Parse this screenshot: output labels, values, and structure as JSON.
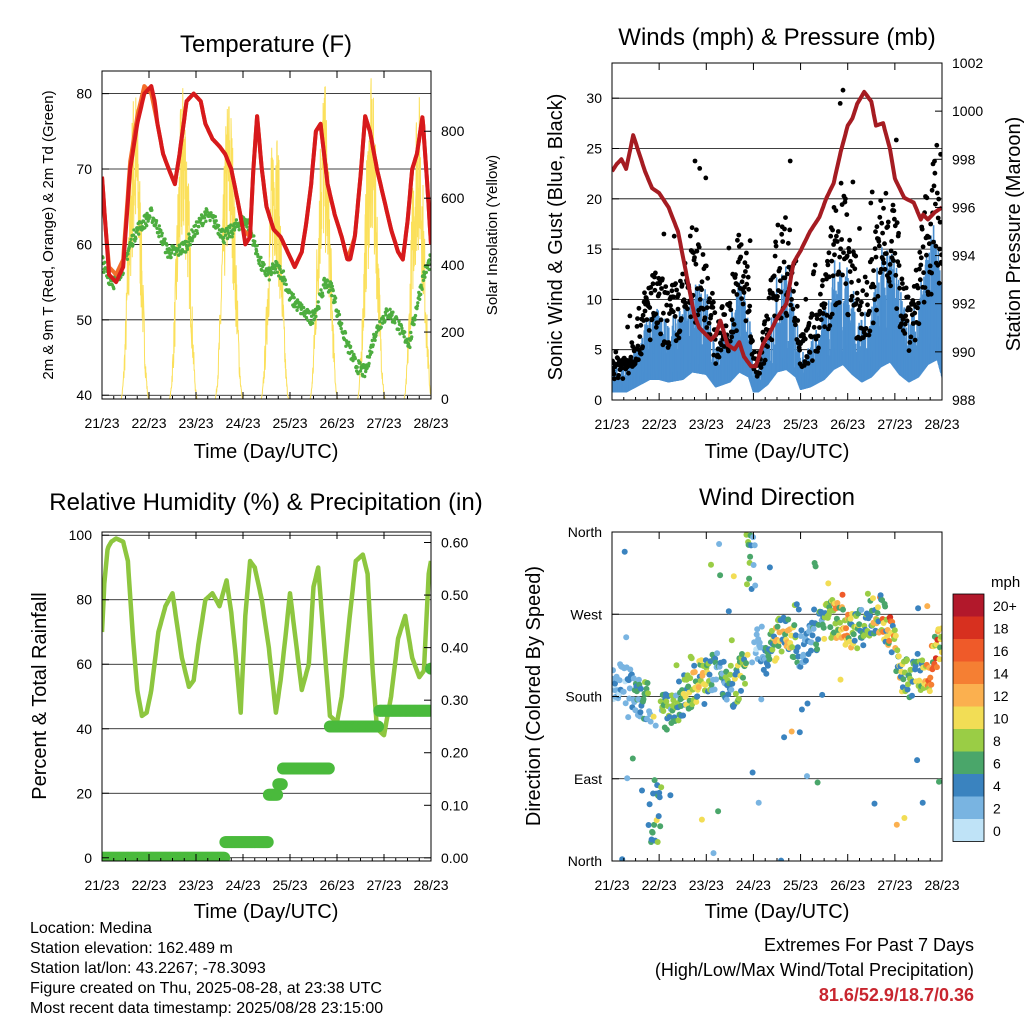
{
  "chart_data": [
    {
      "type": "line",
      "title": "Temperature (F)",
      "xlabel": "Time (Day/UTC)",
      "ylabel": "2m & 9m T (Red, Orange) & 2m Td (Green)",
      "y2label": "Solar Insolation (Yellow)",
      "x_ticks": [
        "21/23",
        "22/23",
        "23/23",
        "24/23",
        "25/23",
        "26/23",
        "27/23",
        "28/23"
      ],
      "xlim": [
        0,
        7
      ],
      "ylim": [
        39.5,
        83
      ],
      "y_ticks": [
        "40",
        "50",
        "60",
        "70",
        "80"
      ],
      "y2lim": [
        0,
        980
      ],
      "y2_ticks": [
        "0",
        "200",
        "400",
        "600",
        "800"
      ],
      "grid": true,
      "series": [
        {
          "role": "t2m",
          "color": "#d7191c",
          "x": [
            0,
            0.08,
            0.15,
            0.3,
            0.45,
            0.6,
            0.75,
            0.9,
            1.05,
            1.12,
            1.18,
            1.3,
            1.42,
            1.55,
            1.65,
            1.8,
            1.95,
            2.1,
            2.2,
            2.35,
            2.5,
            2.62,
            2.75,
            2.88,
            3.0,
            3.05,
            3.15,
            3.22,
            3.3,
            3.4,
            3.5,
            3.65,
            3.8,
            3.95,
            4.1,
            4.25,
            4.35,
            4.45,
            4.55,
            4.65,
            4.8,
            4.95,
            5.1,
            5.22,
            5.28,
            5.38,
            5.5,
            5.6,
            5.7,
            5.85,
            6.0,
            6.15,
            6.3,
            6.4,
            6.5,
            6.6,
            6.7,
            6.82,
            6.92,
            7.0
          ],
          "values": [
            69,
            62,
            56,
            55,
            57,
            70,
            76,
            80,
            81,
            79,
            76,
            72,
            70,
            68,
            72,
            79,
            80,
            79,
            76,
            74,
            73,
            72,
            70,
            66,
            62,
            60,
            61,
            70,
            77,
            70,
            65,
            62,
            61,
            59,
            57,
            59,
            63,
            68,
            75,
            76,
            68,
            64,
            61,
            58,
            58,
            61,
            69,
            77,
            75,
            70,
            66,
            62,
            59,
            58,
            63,
            70,
            72,
            77,
            68,
            60
          ]
        },
        {
          "role": "t9m",
          "color": "#f36c2a",
          "x": [
            0,
            0.08,
            0.15,
            0.3,
            0.45,
            0.6,
            0.75,
            0.9,
            1.05,
            1.18,
            1.3,
            1.42,
            1.55,
            1.65,
            1.8,
            1.95,
            2.1,
            2.2,
            2.35,
            2.5,
            2.62,
            2.75,
            2.88,
            3.0,
            3.15,
            3.22,
            3.3,
            3.4,
            3.5,
            3.65,
            3.8,
            3.95,
            4.1,
            4.25,
            4.35,
            4.45,
            4.55,
            4.65,
            4.8,
            4.95,
            5.1,
            5.22,
            5.38,
            5.5,
            5.6,
            5.7,
            5.85,
            6.0,
            6.15,
            6.3,
            6.4,
            6.5,
            6.6,
            6.7,
            6.82,
            6.92,
            7.0
          ],
          "values": [
            69,
            62,
            57,
            56,
            58,
            71,
            77,
            81,
            80,
            76,
            72,
            70,
            68,
            72,
            79,
            80,
            79,
            76,
            74,
            73,
            72,
            70,
            66,
            62,
            61,
            70,
            77,
            70,
            65,
            62,
            61,
            59,
            57,
            59,
            63,
            68,
            75,
            76,
            68,
            64,
            61,
            58,
            61,
            69,
            77,
            75,
            70,
            66,
            62,
            59,
            58,
            63,
            70,
            72,
            77,
            68,
            60
          ]
        },
        {
          "role": "td2m",
          "color": "#4dad3f",
          "x": [
            0,
            0.1,
            0.25,
            0.45,
            0.6,
            0.75,
            0.9,
            1.05,
            1.2,
            1.4,
            1.6,
            1.8,
            2.0,
            2.2,
            2.4,
            2.6,
            2.8,
            2.95,
            3.1,
            3.25,
            3.4,
            3.55,
            3.7,
            3.85,
            4.0,
            4.15,
            4.3,
            4.45,
            4.6,
            4.75,
            4.9,
            5.05,
            5.2,
            5.4,
            5.6,
            5.8,
            5.95,
            6.1,
            6.25,
            6.4,
            6.55,
            6.7,
            6.85,
            7.0
          ],
          "values": [
            58,
            56,
            55,
            57,
            60,
            62,
            63,
            64,
            62,
            59,
            59,
            60,
            62,
            64,
            63,
            61,
            62,
            63,
            63,
            60,
            57,
            56,
            57,
            56,
            53,
            52,
            51,
            50,
            52,
            55,
            54,
            50,
            47,
            44,
            43,
            48,
            50,
            51,
            50,
            48,
            47,
            52,
            56,
            58
          ]
        }
      ],
      "insolation": {
        "color": "#fbe05b",
        "peak_days": [
          0.7,
          1.73,
          2.7,
          3.68,
          4.72,
          5.73,
          6.72
        ],
        "peaks": [
          960,
          960,
          940,
          880,
          960,
          960,
          940
        ]
      }
    },
    {
      "type": "scatter",
      "title": "Winds (mph) & Pressure (mb)",
      "xlabel": "Time (Day/UTC)",
      "ylabel": "Sonic Wind & Gust (Blue, Black)",
      "y2label": "Station Pressure (Maroon)",
      "x_ticks": [
        "21/23",
        "22/23",
        "23/23",
        "24/23",
        "25/23",
        "26/23",
        "27/23",
        "28/23"
      ],
      "xlim": [
        0,
        7
      ],
      "ylim": [
        0,
        33.5
      ],
      "y_ticks": [
        "0",
        "5",
        "10",
        "15",
        "20",
        "25",
        "30"
      ],
      "y2lim": [
        988,
        1002
      ],
      "y2_ticks": [
        "988",
        "990",
        "992",
        "994",
        "996",
        "998",
        "1000",
        "1002"
      ],
      "grid": true,
      "wind_envelope": {
        "x": [
          0,
          0.3,
          0.6,
          0.8,
          1.0,
          1.2,
          1.5,
          1.7,
          2.0,
          2.2,
          2.5,
          2.7,
          2.9,
          3.0,
          3.1,
          3.3,
          3.5,
          3.7,
          3.9,
          4.0,
          4.2,
          4.5,
          4.7,
          4.9,
          5.1,
          5.3,
          5.5,
          5.7,
          5.9,
          6.1,
          6.3,
          6.5,
          6.7,
          6.9,
          7.0
        ],
        "values": [
          3,
          3,
          6,
          8,
          8,
          7,
          8,
          11,
          10,
          5,
          7,
          11,
          9,
          3,
          3,
          6,
          11,
          12,
          9,
          4,
          5,
          8,
          12,
          14,
          10,
          7,
          9,
          13,
          15,
          10,
          7,
          9,
          14,
          16,
          9
        ]
      },
      "pressure": {
        "color": "#a51c22",
        "x": [
          0,
          0.1,
          0.2,
          0.3,
          0.45,
          0.55,
          0.7,
          0.85,
          1.0,
          1.2,
          1.4,
          1.6,
          1.75,
          1.85,
          1.95,
          2.1,
          2.2,
          2.3,
          2.45,
          2.6,
          2.7,
          2.8,
          2.95,
          3.05,
          3.2,
          3.35,
          3.5,
          3.7,
          3.85,
          4.0,
          4.2,
          4.4,
          4.55,
          4.7,
          4.85,
          5.0,
          5.1,
          5.2,
          5.35,
          5.5,
          5.6,
          5.75,
          5.9,
          6.0,
          6.2,
          6.4,
          6.55,
          6.6,
          6.7,
          6.85,
          7.0
        ],
        "values": [
          997.5,
          997.8,
          998,
          997.6,
          999,
          998.4,
          997.5,
          996.8,
          996.6,
          996,
          995,
          993,
          991.5,
          991,
          990.8,
          990.5,
          990.7,
          991.3,
          990.3,
          990.1,
          990.4,
          989.8,
          989.4,
          989.4,
          990.3,
          990.8,
          991.4,
          992,
          993.7,
          994.2,
          995,
          995.6,
          996.4,
          997,
          998.3,
          999.4,
          999.7,
          1000.3,
          1000.8,
          1000.4,
          999.4,
          999.5,
          998.4,
          997.2,
          996.4,
          996.2,
          995.5,
          995.7,
          995.5,
          995.8,
          996
        ]
      },
      "gusts": {
        "color": "#000000",
        "max": 30.8
      }
    },
    {
      "type": "line",
      "title": "Relative Humidity (%) & Precipitation (in)",
      "xlabel": "Time (Day/UTC)",
      "ylabel": "Percent & Total Rainfall",
      "x_ticks": [
        "21/23",
        "22/23",
        "23/23",
        "24/23",
        "25/23",
        "26/23",
        "27/23",
        "28/23"
      ],
      "xlim": [
        0,
        7
      ],
      "ylim": [
        -1,
        101
      ],
      "y_ticks": [
        "0",
        "20",
        "40",
        "60",
        "80",
        "100"
      ],
      "y2lim": [
        -0.006,
        0.62
      ],
      "y2_ticks": [
        "0.00",
        "0.10",
        "0.20",
        "0.30",
        "0.40",
        "0.50",
        "0.60"
      ],
      "grid": true,
      "series": [
        {
          "role": "rh",
          "color": "#8dc63f",
          "x": [
            0,
            0.05,
            0.12,
            0.2,
            0.3,
            0.45,
            0.55,
            0.65,
            0.75,
            0.85,
            0.95,
            1.05,
            1.2,
            1.35,
            1.5,
            1.7,
            1.85,
            1.95,
            2.05,
            2.2,
            2.35,
            2.5,
            2.65,
            2.75,
            2.85,
            2.95,
            3.05,
            3.15,
            3.25,
            3.4,
            3.55,
            3.7,
            3.8,
            3.9,
            4.0,
            4.1,
            4.25,
            4.4,
            4.5,
            4.6,
            4.75,
            4.85,
            5.0,
            5.1,
            5.25,
            5.4,
            5.55,
            5.65,
            5.75,
            5.85,
            6.0,
            6.15,
            6.3,
            6.45,
            6.6,
            6.75,
            6.85,
            6.95,
            7.0
          ],
          "values": [
            70,
            85,
            96,
            98,
            99,
            98,
            92,
            70,
            52,
            44,
            45,
            52,
            70,
            78,
            82,
            62,
            53,
            55,
            66,
            80,
            82,
            78,
            86,
            76,
            62,
            45,
            75,
            92,
            90,
            80,
            65,
            45,
            55,
            68,
            82,
            70,
            52,
            60,
            84,
            90,
            62,
            44,
            42,
            50,
            72,
            92,
            94,
            88,
            60,
            40,
            38,
            50,
            68,
            75,
            62,
            56,
            58,
            88,
            92
          ]
        },
        {
          "role": "precip",
          "color": "#4aba3c",
          "x": [
            0,
            2.6,
            2.62,
            3.5,
            3.55,
            3.75,
            3.85,
            4.8,
            4.85,
            5.8,
            5.9,
            6.92,
            7.0
          ],
          "values": [
            0,
            0,
            0.03,
            0.03,
            0.12,
            0.14,
            0.17,
            0.17,
            0.25,
            0.25,
            0.28,
            0.28,
            0.36
          ]
        }
      ]
    },
    {
      "type": "scatter",
      "title": "Wind Direction",
      "xlabel": "Time (Day/UTC)",
      "ylabel": "Direction (Colored By Speed)",
      "x_ticks": [
        "21/23",
        "22/23",
        "23/23",
        "24/23",
        "25/23",
        "26/23",
        "27/23",
        "28/23"
      ],
      "xlim": [
        0,
        7
      ],
      "ylim": [
        0,
        360
      ],
      "y_ticks": [
        "North",
        "East",
        "South",
        "West",
        "North"
      ],
      "grid": true,
      "colorbar": {
        "title": "mph",
        "labels": [
          "20+",
          "18",
          "16",
          "14",
          "12",
          "10",
          "8",
          "6",
          "4",
          "2",
          "0"
        ],
        "colors": [
          "#b2182b",
          "#d7301f",
          "#ef5a29",
          "#f57f33",
          "#fbb04f",
          "#f2dd55",
          "#9acd45",
          "#4aa66a",
          "#3a83bf",
          "#79b4e1",
          "#bfe3f7"
        ]
      },
      "direction_track": {
        "x": [
          0,
          0.3,
          0.6,
          0.8,
          1.0,
          1.2,
          1.4,
          1.6,
          1.8,
          2.0,
          2.2,
          2.4,
          2.6,
          2.8,
          3.0,
          3.1,
          3.3,
          3.5,
          3.7,
          3.9,
          4.1,
          4.3,
          4.5,
          4.7,
          4.9,
          5.1,
          5.3,
          5.5,
          5.7,
          5.9,
          6.1,
          6.3,
          6.5,
          6.7,
          6.85,
          7.0
        ],
        "values": [
          200,
          190,
          180,
          170,
          160,
          165,
          175,
          185,
          195,
          200,
          210,
          195,
          190,
          210,
          230,
          240,
          225,
          240,
          255,
          235,
          230,
          245,
          260,
          265,
          260,
          245,
          255,
          265,
          270,
          255,
          210,
          200,
          205,
          200,
          230,
          245
        ]
      }
    }
  ],
  "info": {
    "location": "Location: Medina",
    "elevation": "Station elevation: 162.489 m",
    "latlon": "Station lat/lon: 43.2267; -78.3093",
    "created": "Figure created on Thu, 2025-08-28, at 23:38 UTC",
    "recent": "Most recent data timestamp: 2025/08/28 23:15:00"
  },
  "extremes": {
    "title": "Extremes For Past 7 Days",
    "subtitle": "(High/Low/Max Wind/Total Precipitation)",
    "values": "81.6/52.9/18.7/0.36"
  }
}
